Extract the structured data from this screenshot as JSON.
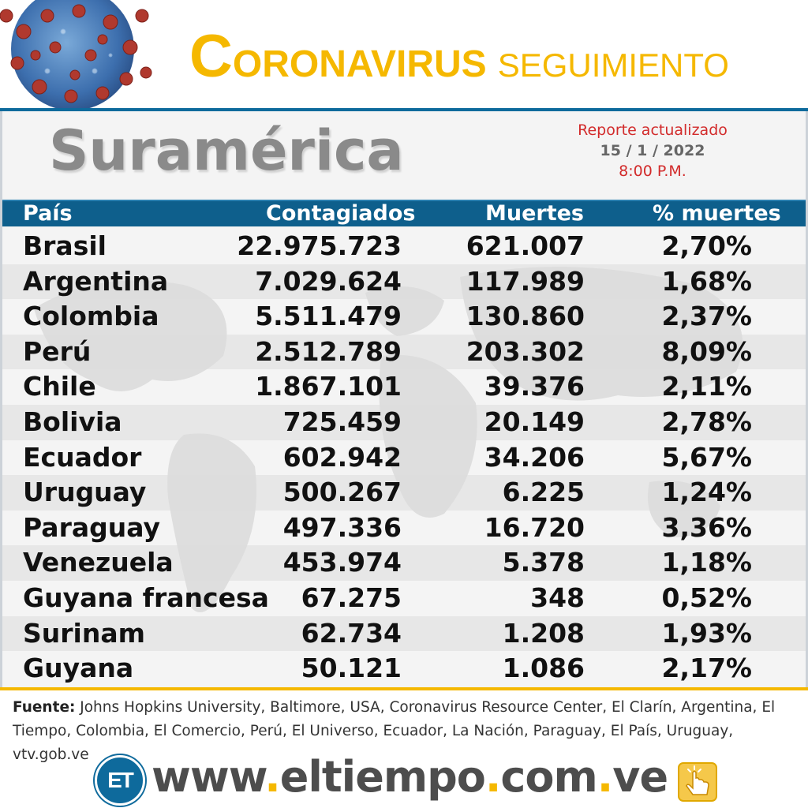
{
  "header": {
    "title_initial": "C",
    "title_rest": "ORONAVIRUS",
    "title_second": "SEGUIMIENTO",
    "accent_color": "#f5b800",
    "brand_blue": "#0e6a9c"
  },
  "region": "Suramérica",
  "report": {
    "line1": "Reporte actualizado",
    "date": "15 / 1 / 2022",
    "time": "8:00 P.M."
  },
  "table": {
    "headers": {
      "country": "País",
      "cases": "Contagiados",
      "deaths": "Muertes",
      "pct": "% muertes"
    },
    "rows": [
      {
        "country": "Brasil",
        "cases": "22.975.723",
        "deaths": "621.007",
        "pct": "2,70%"
      },
      {
        "country": "Argentina",
        "cases": "7.029.624",
        "deaths": "117.989",
        "pct": "1,68%"
      },
      {
        "country": "Colombia",
        "cases": "5.511.479",
        "deaths": "130.860",
        "pct": "2,37%"
      },
      {
        "country": "Perú",
        "cases": "2.512.789",
        "deaths": "203.302",
        "pct": "8,09%"
      },
      {
        "country": "Chile",
        "cases": "1.867.101",
        "deaths": "39.376",
        "pct": "2,11%"
      },
      {
        "country": "Bolivia",
        "cases": "725.459",
        "deaths": "20.149",
        "pct": "2,78%"
      },
      {
        "country": "Ecuador",
        "cases": "602.942",
        "deaths": "34.206",
        "pct": "5,67%"
      },
      {
        "country": "Uruguay",
        "cases": "500.267",
        "deaths": "6.225",
        "pct": "1,24%"
      },
      {
        "country": "Paraguay",
        "cases": "497.336",
        "deaths": "16.720",
        "pct": "3,36%"
      },
      {
        "country": "Venezuela",
        "cases": "453.974",
        "deaths": "5.378",
        "pct": "1,18%"
      },
      {
        "country": "Guyana francesa",
        "cases": "67.275",
        "deaths": "348",
        "pct": "0,52%"
      },
      {
        "country": "Surinam",
        "cases": "62.734",
        "deaths": "1.208",
        "pct": "1,93%"
      },
      {
        "country": "Guyana",
        "cases": "50.121",
        "deaths": "1.086",
        "pct": "2,17%"
      }
    ]
  },
  "source": {
    "label": "Fuente:",
    "text": " Johns Hopkins University, Baltimore, USA, Coronavirus Resource Center,  El Clarín, Argentina, El Tiempo, Colombia, El Comercio, Perú, El Universo, Ecuador, La Nación, Paraguay, El País, Uruguay, vtv.gob.ve"
  },
  "footer": {
    "logo_text": "ET",
    "url_parts": [
      "www",
      ".",
      "eltiempo",
      ".",
      "com",
      ".",
      "ve"
    ],
    "icons": [
      "virus-illustration",
      "click-hand-icon"
    ]
  }
}
